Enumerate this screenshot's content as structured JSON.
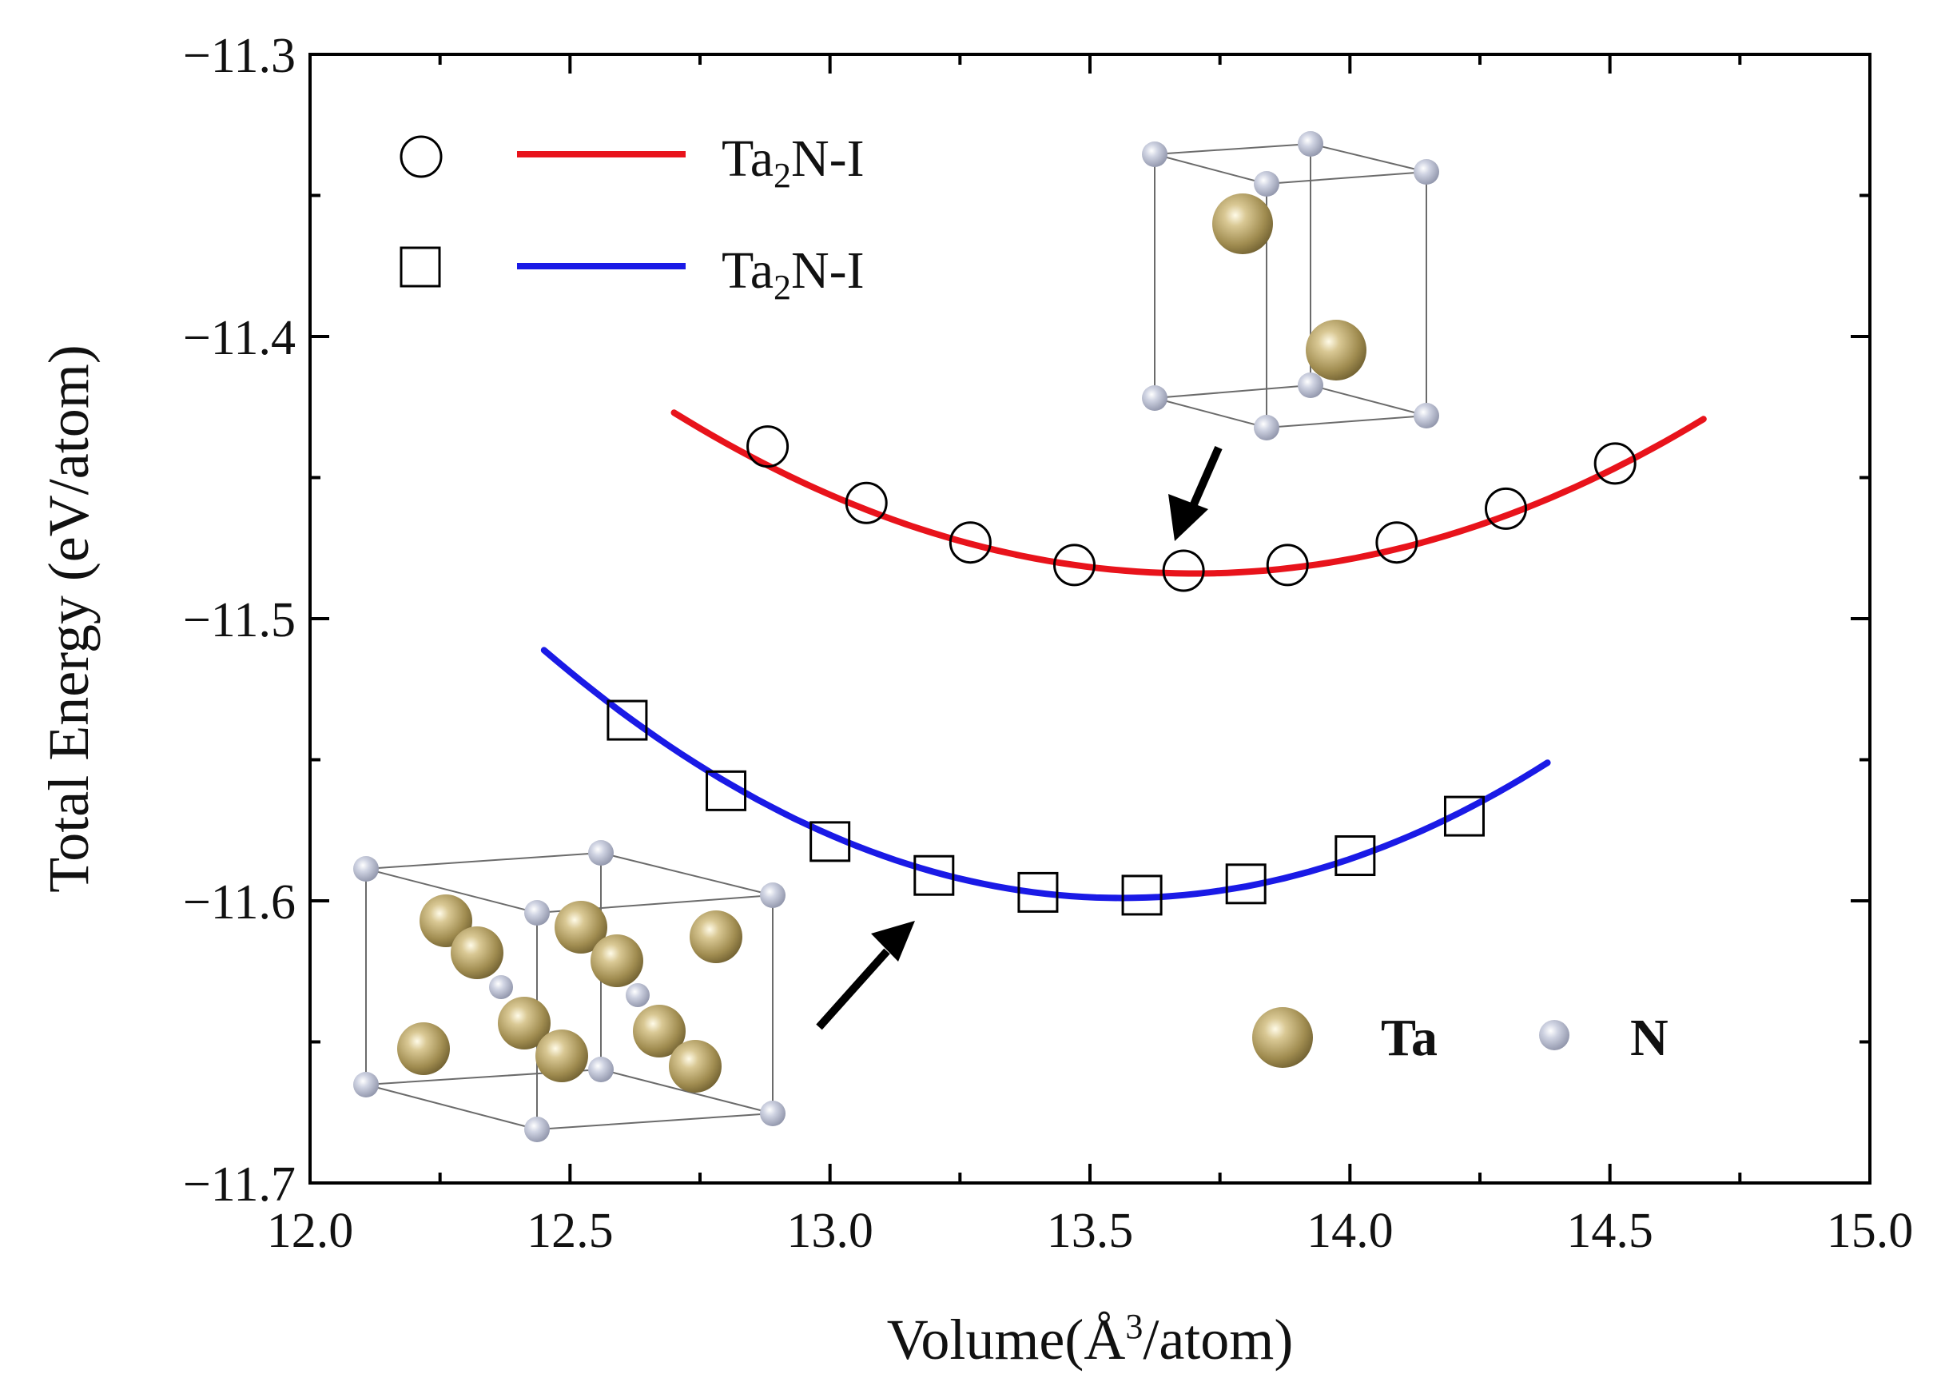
{
  "chart_data": {
    "type": "scatter",
    "xlabel": {
      "main": "Volume(Å",
      "sup": "3",
      "tail": "/atom)"
    },
    "ylabel": "Total Energy (eV/atom)",
    "xlim": [
      12.0,
      15.0
    ],
    "ylim": [
      -11.7,
      -11.3
    ],
    "xticks": [
      "12.0",
      "12.5",
      "13.0",
      "13.5",
      "14.0",
      "14.5",
      "15.0"
    ],
    "yticks": [
      "-11.3",
      "-11.4",
      "-11.5",
      "-11.6",
      "-11.7"
    ],
    "legend_position": "top-left",
    "series": [
      {
        "name": "Ta2N-I",
        "label": {
          "main": "Ta",
          "sub": "2",
          "tail": "N-I"
        },
        "marker": "circle",
        "color": "#e8131b",
        "points": [
          [
            12.88,
            -11.439
          ],
          [
            13.07,
            -11.459
          ],
          [
            13.27,
            -11.473
          ],
          [
            13.47,
            -11.481
          ],
          [
            13.68,
            -11.483
          ],
          [
            13.88,
            -11.481
          ],
          [
            14.09,
            -11.473
          ],
          [
            14.3,
            -11.461
          ],
          [
            14.51,
            -11.445
          ]
        ],
        "fit": {
          "x_range": [
            12.7,
            14.68
          ],
          "vertex_x": 13.7,
          "vertex_y": -11.484,
          "curvature": 0.057
        }
      },
      {
        "name": "Ta2N-I",
        "label": {
          "main": "Ta",
          "sub": "2",
          "tail": "N-I"
        },
        "marker": "square",
        "color": "#1a1ae6",
        "points": [
          [
            12.61,
            -11.536
          ],
          [
            12.8,
            -11.561
          ],
          [
            13.0,
            -11.579
          ],
          [
            13.2,
            -11.591
          ],
          [
            13.4,
            -11.597
          ],
          [
            13.6,
            -11.598
          ],
          [
            13.8,
            -11.594
          ],
          [
            14.01,
            -11.584
          ],
          [
            14.22,
            -11.57
          ]
        ],
        "fit": {
          "x_range": [
            12.45,
            14.38
          ],
          "vertex_x": 13.56,
          "vertex_y": -11.599,
          "curvature": 0.0713
        }
      }
    ],
    "atom_legend": {
      "Ta": {
        "label": "Ta",
        "color": "#a08c50"
      },
      "N": {
        "label": "N",
        "color": "#a5aabd"
      }
    }
  }
}
